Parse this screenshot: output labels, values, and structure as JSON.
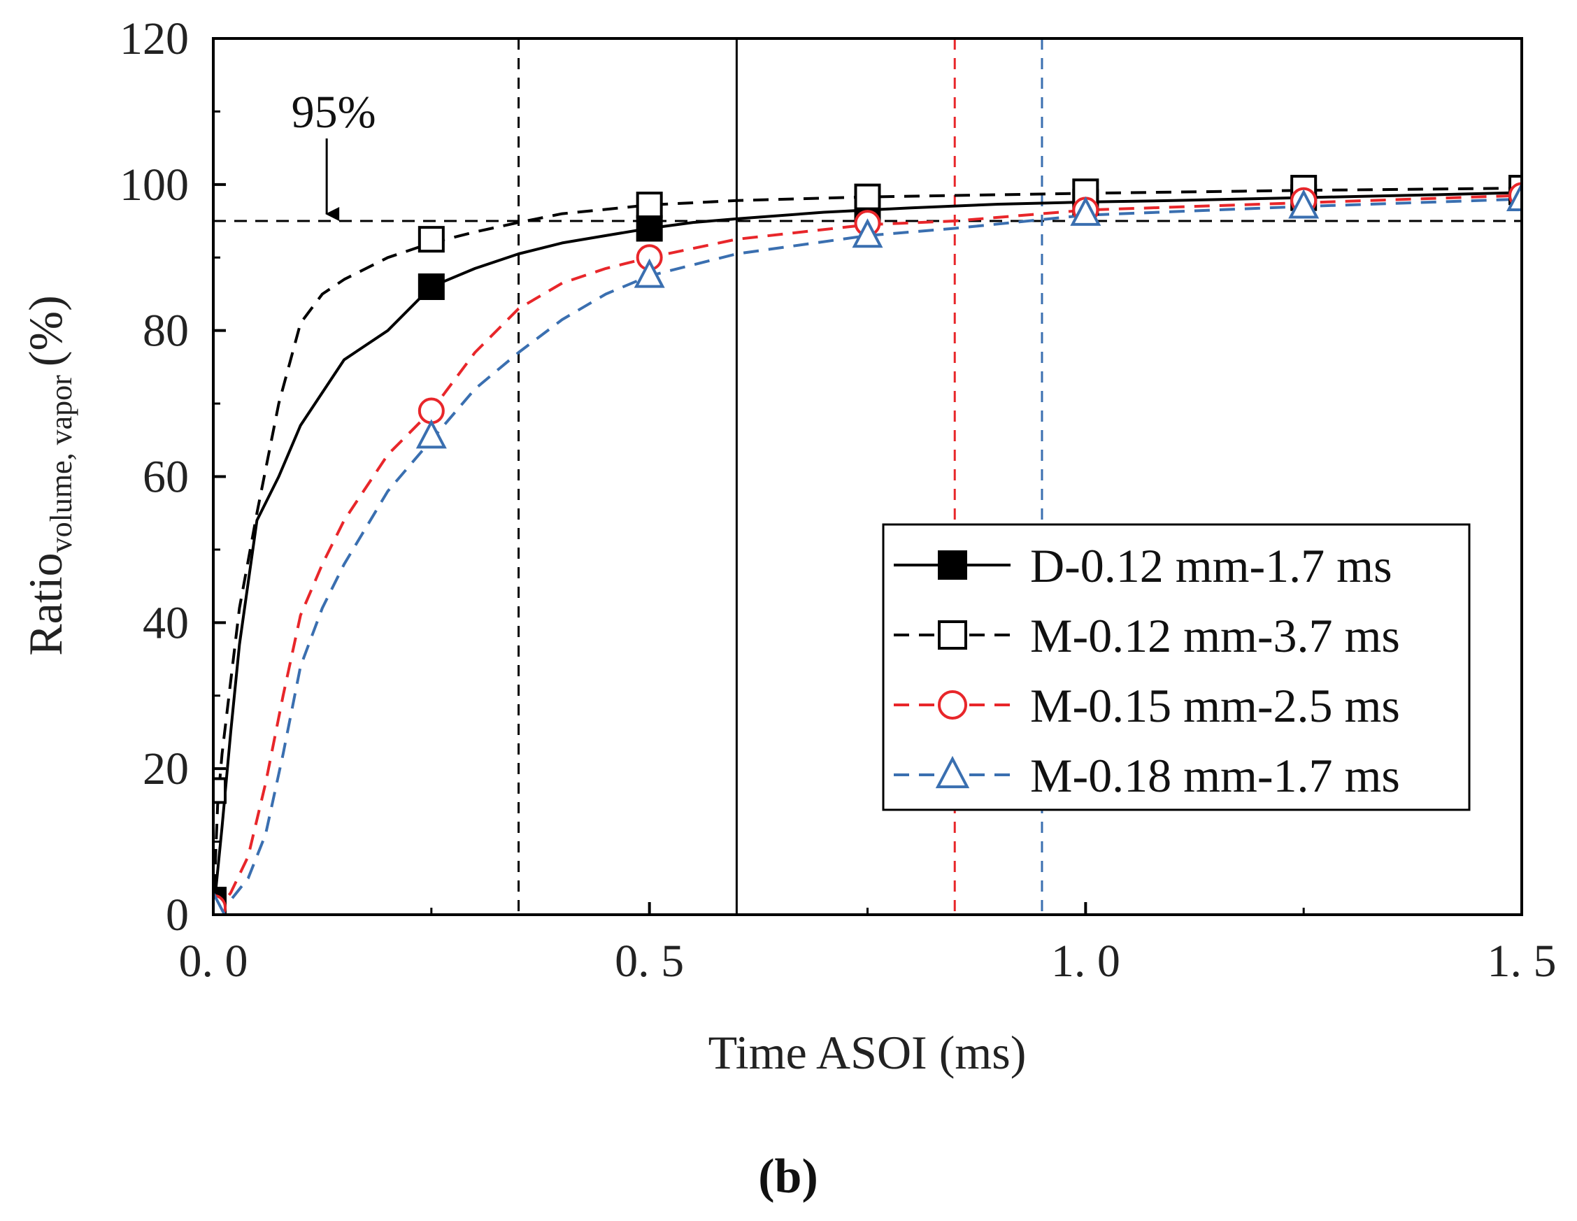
{
  "chart_data": {
    "type": "line",
    "title": "",
    "xlabel": "Time ASOI (ms)",
    "ylabel": {
      "main": "Ratio",
      "subscript": "volume, vapor",
      "unit": "(%)"
    },
    "xlim": [
      0,
      1.5
    ],
    "ylim": [
      0,
      120
    ],
    "x_ticks": [
      {
        "value": 0,
        "label": "0. 0"
      },
      {
        "value": 0.5,
        "label": "0. 5"
      },
      {
        "value": 1.0,
        "label": "1. 0"
      },
      {
        "value": 1.5,
        "label": "1. 5"
      }
    ],
    "y_ticks": [
      {
        "value": 0,
        "label": "0"
      },
      {
        "value": 20,
        "label": "20"
      },
      {
        "value": 40,
        "label": "40"
      },
      {
        "value": 60,
        "label": "60"
      },
      {
        "value": 80,
        "label": "80"
      },
      {
        "value": 100,
        "label": "100"
      },
      {
        "value": 120,
        "label": "120"
      }
    ],
    "panel_label": "(b)",
    "reference_line": {
      "y": 95,
      "label": "95%",
      "label_x": 0.13,
      "color": "#000000"
    },
    "vertical_lines": [
      {
        "x": 0.35,
        "color": "#000000",
        "dash": true
      },
      {
        "x": 0.6,
        "color": "#000000",
        "dash": false
      },
      {
        "x": 0.85,
        "color": "#e8262a",
        "dash": true
      },
      {
        "x": 0.95,
        "color": "#3a6fb0",
        "dash": true
      }
    ],
    "legend_position": "center-right",
    "series": [
      {
        "name": "D-0.12 mm-1.7 ms",
        "color": "#000000",
        "dash": false,
        "marker": "filled-square",
        "curve_x": [
          0,
          0.01,
          0.02,
          0.03,
          0.05,
          0.075,
          0.1,
          0.15,
          0.2,
          0.25,
          0.3,
          0.35,
          0.4,
          0.45,
          0.5,
          0.55,
          0.6,
          0.7,
          0.8,
          0.9,
          1.0,
          1.1,
          1.25,
          1.4,
          1.5
        ],
        "curve_y": [
          0,
          12,
          25,
          37,
          54,
          60,
          67,
          76,
          80,
          86,
          88.5,
          90.5,
          92,
          93,
          94,
          94.8,
          95.3,
          96.2,
          96.8,
          97.3,
          97.6,
          97.8,
          98.2,
          98.6,
          98.9
        ],
        "marker_x": [
          0,
          0.25,
          0.5,
          0.75,
          1.0,
          1.25,
          1.5
        ],
        "marker_y": [
          2,
          86,
          94,
          96.5,
          97.6,
          98.2,
          99
        ]
      },
      {
        "name": "M-0.12 mm-3.7 ms",
        "color": "#000000",
        "dash": true,
        "marker": "open-square",
        "curve_x": [
          0,
          0.005,
          0.01,
          0.02,
          0.03,
          0.05,
          0.075,
          0.1,
          0.125,
          0.15,
          0.2,
          0.25,
          0.3,
          0.35,
          0.4,
          0.5,
          0.6,
          0.75,
          1.0,
          1.25,
          1.5
        ],
        "curve_y": [
          0,
          15,
          22,
          32,
          42,
          55,
          70,
          81,
          85,
          87,
          90,
          92,
          93.5,
          94.8,
          96,
          97.2,
          97.8,
          98.3,
          98.8,
          99.2,
          99.5
        ],
        "marker_x": [
          0,
          0.25,
          0.5,
          0.75,
          1.0,
          1.25,
          1.5
        ],
        "marker_y": [
          17,
          92.5,
          97.2,
          98.3,
          99,
          99.5,
          99.5
        ]
      },
      {
        "name": "M-0.15 mm-2.5 ms",
        "color": "#e8262a",
        "dash": true,
        "marker": "open-circle",
        "curve_x": [
          0,
          0.02,
          0.04,
          0.06,
          0.08,
          0.1,
          0.125,
          0.15,
          0.2,
          0.25,
          0.3,
          0.35,
          0.4,
          0.45,
          0.5,
          0.6,
          0.75,
          0.85,
          1.0,
          1.25,
          1.5
        ],
        "curve_y": [
          0,
          3,
          8,
          18,
          30,
          41,
          48,
          54,
          63,
          69,
          77,
          83,
          86.5,
          88.5,
          90,
          92.5,
          94.5,
          95,
          96.5,
          97.5,
          98.5
        ],
        "marker_x": [
          0,
          0.25,
          0.5,
          0.75,
          1.0,
          1.25,
          1.5
        ],
        "marker_y": [
          1,
          69,
          90,
          94.7,
          96.5,
          97.8,
          98.5
        ]
      },
      {
        "name": "M-0.18 mm-1.7 ms",
        "color": "#3a6fb0",
        "dash": true,
        "marker": "open-triangle",
        "curve_x": [
          0,
          0.02,
          0.04,
          0.06,
          0.08,
          0.1,
          0.125,
          0.15,
          0.2,
          0.25,
          0.3,
          0.35,
          0.4,
          0.45,
          0.5,
          0.6,
          0.75,
          0.85,
          0.95,
          1.0,
          1.25,
          1.5
        ],
        "curve_y": [
          0,
          2,
          5,
          11,
          22,
          34,
          42,
          48,
          58,
          65,
          72,
          77,
          81.5,
          85,
          87.5,
          90.5,
          93,
          94,
          95.2,
          95.8,
          97,
          98
        ],
        "marker_x": [
          0,
          0.25,
          0.5,
          0.75,
          1.0,
          1.25,
          1.5
        ],
        "marker_y": [
          1,
          65.5,
          87.5,
          93,
          96,
          97,
          98
        ]
      }
    ]
  }
}
